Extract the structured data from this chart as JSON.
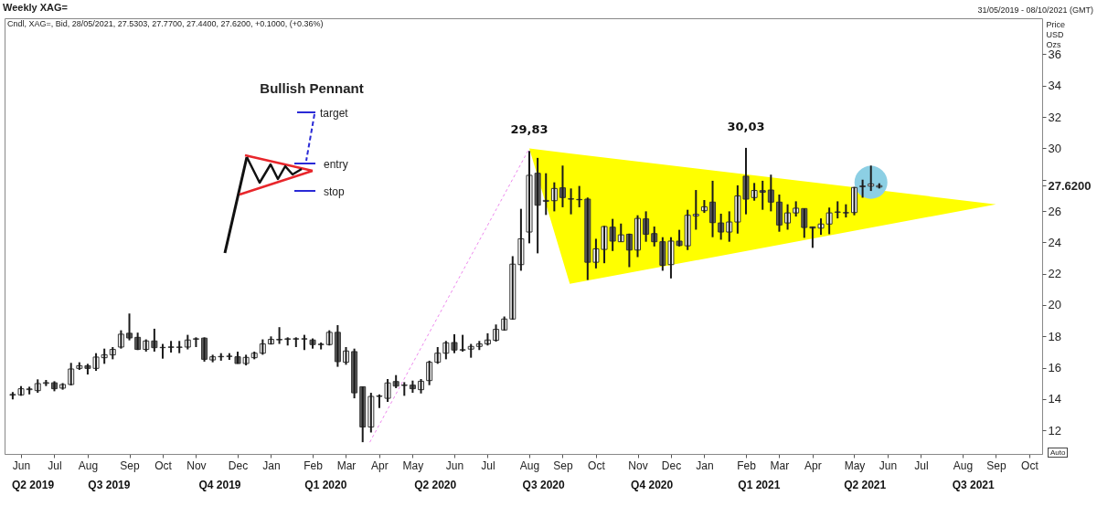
{
  "chart_data": {
    "type": "candlestick",
    "title": "Weekly XAG=",
    "subtitle": "Cndl, XAG=, Bid, 28/05/2021, 27.5303, 27.7700, 27.4400, 27.6200, +0.1000, (+0.36%)",
    "ylabel": "Price USD Ozs",
    "x": [
      "2019-05-31",
      "2019-06-07",
      "2019-06-14",
      "2019-06-21",
      "2019-06-28",
      "2019-07-05",
      "2019-07-12",
      "2019-07-19",
      "2019-07-26",
      "2019-08-02",
      "2019-08-09",
      "2019-08-16",
      "2019-08-23",
      "2019-08-30",
      "2019-09-06",
      "2019-09-13",
      "2019-09-20",
      "2019-09-27",
      "2019-10-04",
      "2019-10-11",
      "2019-10-18",
      "2019-10-25",
      "2019-11-01",
      "2019-11-08",
      "2019-11-15",
      "2019-11-22",
      "2019-11-29",
      "2019-12-06",
      "2019-12-13",
      "2019-12-20",
      "2019-12-27",
      "2020-01-03",
      "2020-01-10",
      "2020-01-17",
      "2020-01-24",
      "2020-01-31",
      "2020-02-07",
      "2020-02-14",
      "2020-02-21",
      "2020-02-28",
      "2020-03-06",
      "2020-03-13",
      "2020-03-20",
      "2020-03-27",
      "2020-04-03",
      "2020-04-10",
      "2020-04-17",
      "2020-04-24",
      "2020-05-01",
      "2020-05-08",
      "2020-05-15",
      "2020-05-22",
      "2020-05-29",
      "2020-06-05",
      "2020-06-12",
      "2020-06-19",
      "2020-06-26",
      "2020-07-03",
      "2020-07-10",
      "2020-07-17",
      "2020-07-24",
      "2020-07-31",
      "2020-08-07",
      "2020-08-14",
      "2020-08-21",
      "2020-08-28",
      "2020-09-04",
      "2020-09-11",
      "2020-09-18",
      "2020-09-25",
      "2020-10-02",
      "2020-10-09",
      "2020-10-16",
      "2020-10-23",
      "2020-10-30",
      "2020-11-06",
      "2020-11-13",
      "2020-11-20",
      "2020-11-27",
      "2020-12-04",
      "2020-12-11",
      "2020-12-18",
      "2020-12-25",
      "2021-01-01",
      "2021-01-08",
      "2021-01-15",
      "2021-01-22",
      "2021-01-29",
      "2021-02-05",
      "2021-02-12",
      "2021-02-19",
      "2021-02-26",
      "2021-03-05",
      "2021-03-12",
      "2021-03-19",
      "2021-03-26",
      "2021-04-02",
      "2021-04-09",
      "2021-04-16",
      "2021-04-23",
      "2021-04-30",
      "2021-05-07",
      "2021-05-14",
      "2021-05-21",
      "2021-05-28"
    ],
    "ohlc": [
      [
        14.25,
        14.45,
        13.98,
        14.3
      ],
      [
        14.27,
        14.83,
        14.21,
        14.66
      ],
      [
        14.6,
        14.79,
        14.3,
        14.65
      ],
      [
        14.54,
        15.26,
        14.4,
        14.99
      ],
      [
        15.0,
        15.22,
        14.83,
        15.05
      ],
      [
        15.04,
        15.14,
        14.5,
        14.66
      ],
      [
        14.7,
        15.02,
        14.6,
        14.93
      ],
      [
        14.93,
        16.31,
        14.87,
        15.92
      ],
      [
        15.96,
        16.35,
        15.86,
        16.13
      ],
      [
        16.13,
        16.25,
        15.57,
        15.96
      ],
      [
        15.96,
        16.93,
        15.8,
        16.68
      ],
      [
        16.64,
        17.22,
        16.25,
        16.83
      ],
      [
        16.82,
        17.32,
        16.54,
        17.17
      ],
      [
        17.32,
        18.39,
        17.22,
        18.14
      ],
      [
        18.2,
        19.46,
        17.75,
        17.9
      ],
      [
        17.94,
        18.24,
        17.13,
        17.17
      ],
      [
        17.17,
        17.81,
        17.03,
        17.71
      ],
      [
        17.71,
        18.49,
        17.03,
        17.28
      ],
      [
        17.3,
        17.52,
        16.58,
        17.28
      ],
      [
        17.3,
        17.71,
        16.97,
        17.33
      ],
      [
        17.32,
        17.71,
        16.93,
        17.3
      ],
      [
        17.32,
        18.1,
        17.17,
        17.77
      ],
      [
        17.82,
        17.94,
        17.32,
        17.85
      ],
      [
        17.89,
        17.94,
        16.39,
        16.54
      ],
      [
        16.5,
        16.83,
        16.35,
        16.7
      ],
      [
        16.7,
        16.93,
        16.45,
        16.72
      ],
      [
        16.72,
        16.93,
        16.5,
        16.74
      ],
      [
        16.7,
        17.03,
        16.25,
        16.27
      ],
      [
        16.27,
        16.83,
        16.15,
        16.66
      ],
      [
        16.64,
        17.03,
        16.54,
        16.93
      ],
      [
        16.93,
        17.81,
        16.83,
        17.52
      ],
      [
        17.52,
        18.0,
        17.48,
        17.81
      ],
      [
        17.78,
        18.59,
        17.52,
        17.81
      ],
      [
        17.81,
        17.94,
        17.42,
        17.85
      ],
      [
        17.85,
        17.94,
        17.32,
        17.83
      ],
      [
        17.83,
        18.1,
        17.13,
        17.85
      ],
      [
        17.77,
        17.87,
        17.22,
        17.48
      ],
      [
        17.5,
        17.61,
        17.17,
        17.48
      ],
      [
        17.48,
        18.39,
        17.42,
        18.26
      ],
      [
        18.26,
        18.72,
        16.06,
        16.39
      ],
      [
        16.35,
        17.32,
        16.19,
        17.07
      ],
      [
        17.03,
        17.22,
        14.05,
        14.4
      ],
      [
        14.79,
        14.79,
        11.25,
        12.22
      ],
      [
        12.22,
        14.4,
        11.87,
        14.17
      ],
      [
        14.17,
        14.3,
        13.43,
        14.2
      ],
      [
        14.05,
        15.28,
        13.82,
        15.03
      ],
      [
        15.12,
        15.53,
        14.7,
        14.83
      ],
      [
        14.87,
        15.08,
        14.21,
        14.9
      ],
      [
        14.89,
        15.18,
        14.4,
        14.66
      ],
      [
        14.6,
        15.28,
        14.36,
        15.14
      ],
      [
        15.18,
        16.45,
        14.89,
        16.35
      ],
      [
        16.35,
        17.32,
        16.25,
        16.93
      ],
      [
        16.93,
        17.71,
        16.54,
        17.59
      ],
      [
        17.61,
        18.14,
        16.93,
        17.13
      ],
      [
        17.13,
        18.1,
        17.03,
        17.15
      ],
      [
        17.19,
        17.52,
        16.64,
        17.36
      ],
      [
        17.36,
        17.71,
        17.13,
        17.52
      ],
      [
        17.52,
        18.2,
        17.42,
        17.77
      ],
      [
        17.75,
        18.76,
        17.67,
        18.45
      ],
      [
        18.41,
        19.27,
        18.37,
        19.11
      ],
      [
        19.11,
        23.12,
        19.07,
        22.61
      ],
      [
        22.58,
        26.14,
        22.19,
        24.23
      ],
      [
        24.66,
        29.83,
        23.94,
        28.28
      ],
      [
        28.41,
        29.39,
        23.3,
        26.37
      ],
      [
        26.62,
        28.41,
        25.75,
        26.68
      ],
      [
        26.66,
        27.83,
        25.98,
        27.44
      ],
      [
        27.48,
        28.9,
        26.24,
        26.86
      ],
      [
        26.78,
        27.44,
        25.79,
        26.76
      ],
      [
        26.74,
        27.6,
        26.24,
        26.72
      ],
      [
        26.76,
        26.86,
        21.6,
        22.73
      ],
      [
        22.73,
        24.23,
        22.34,
        23.59
      ],
      [
        23.55,
        25.05,
        22.67,
        25.01
      ],
      [
        24.97,
        25.5,
        23.45,
        24.08
      ],
      [
        24.04,
        25.2,
        24.04,
        24.48
      ],
      [
        24.52,
        24.56,
        22.42,
        23.51
      ],
      [
        23.51,
        25.73,
        23.06,
        25.53
      ],
      [
        25.5,
        25.98,
        24.04,
        24.52
      ],
      [
        24.56,
        25.01,
        23.74,
        24.04
      ],
      [
        24.04,
        24.33,
        22.19,
        22.54
      ],
      [
        22.58,
        24.33,
        21.7,
        24.08
      ],
      [
        24.08,
        24.8,
        23.74,
        23.8
      ],
      [
        23.78,
        26.08,
        23.51,
        25.73
      ],
      [
        25.69,
        27.34,
        24.81,
        25.79
      ],
      [
        26.02,
        26.7,
        25.88,
        26.27
      ],
      [
        26.57,
        27.93,
        24.33,
        25.26
      ],
      [
        25.24,
        25.83,
        24.17,
        24.66
      ],
      [
        24.66,
        25.98,
        24.04,
        25.3
      ],
      [
        25.3,
        27.64,
        24.56,
        26.96
      ],
      [
        28.22,
        30.03,
        25.79,
        26.76
      ],
      [
        26.86,
        27.79,
        26.66,
        27.31
      ],
      [
        27.3,
        27.93,
        26.08,
        27.2
      ],
      [
        27.34,
        28.32,
        25.98,
        26.57
      ],
      [
        26.57,
        27.05,
        24.68,
        25.11
      ],
      [
        25.24,
        26.43,
        24.81,
        25.88
      ],
      [
        25.88,
        26.62,
        25.65,
        26.18
      ],
      [
        26.16,
        26.16,
        24.29,
        24.95
      ],
      [
        24.99,
        24.99,
        23.65,
        24.91
      ],
      [
        24.91,
        25.53,
        24.48,
        25.17
      ],
      [
        25.17,
        26.22,
        24.52,
        25.88
      ],
      [
        25.92,
        26.62,
        25.53,
        25.94
      ],
      [
        25.88,
        26.43,
        25.59,
        25.9
      ],
      [
        25.9,
        27.54,
        25.73,
        27.5
      ],
      [
        27.55,
        28.0,
        26.85,
        27.6
      ],
      [
        27.59,
        28.9,
        27.28,
        27.73
      ],
      [
        27.53,
        27.77,
        27.44,
        27.62
      ]
    ],
    "xlim": [
      "2019-05-28",
      "2021-10-08"
    ],
    "x2lim": [
      "2019-05-28",
      "2021-10-08"
    ],
    "ylim": [
      10.5,
      38.3
    ],
    "yticks": [
      12,
      14,
      16,
      18,
      20,
      22,
      24,
      26,
      {
        "value": 27.62,
        "label": "27.6200"
      },
      {
        "value": 28,
        "label": null
      },
      30,
      32,
      34,
      36
    ],
    "xticks": [
      {
        "value": "2019-06-07",
        "label": "Jun"
      },
      {
        "value": "2019-07-05",
        "label": "Jul"
      },
      {
        "value": "2019-08-02",
        "label": "Aug"
      },
      {
        "value": "2019-09-06",
        "label": "Sep"
      },
      {
        "value": "2019-10-04",
        "label": "Oct"
      },
      {
        "value": "2019-11-01",
        "label": "Nov"
      },
      {
        "value": "2019-12-06",
        "label": "Dec"
      },
      {
        "value": "2020-01-03",
        "label": "Jan"
      },
      {
        "value": "2020-02-07",
        "label": "Feb"
      },
      {
        "value": "2020-03-06",
        "label": "Mar"
      },
      {
        "value": "2020-04-03",
        "label": "Apr"
      },
      {
        "value": "2020-05-01",
        "label": "May"
      },
      {
        "value": "2020-06-05",
        "label": "Jun"
      },
      {
        "value": "2020-07-03",
        "label": "Jul"
      },
      {
        "value": "2020-08-07",
        "label": "Aug"
      },
      {
        "value": "2020-09-04",
        "label": "Sep"
      },
      {
        "value": "2020-10-02",
        "label": "Oct"
      },
      {
        "value": "2020-11-06",
        "label": "Nov"
      },
      {
        "value": "2020-12-04",
        "label": "Dec"
      },
      {
        "value": "2021-01-01",
        "label": "Jan"
      },
      {
        "value": "2021-02-05",
        "label": "Feb"
      },
      {
        "value": "2021-03-05",
        "label": "Mar"
      },
      {
        "value": "2021-04-02",
        "label": "Apr"
      },
      {
        "value": "2021-05-07",
        "label": "May"
      },
      {
        "value": "2021-06-04",
        "label": "Jun"
      },
      {
        "value": "2021-07-02",
        "label": "Jul"
      },
      {
        "value": "2021-08-06",
        "label": "Aug"
      },
      {
        "value": "2021-09-03",
        "label": "Sep"
      },
      {
        "value": "2021-10-01",
        "label": "Oct"
      }
    ],
    "x2ticks": [
      {
        "value": "2019-06-17",
        "label": "Q2 2019"
      },
      {
        "value": "2019-08-20",
        "label": "Q3 2019"
      },
      {
        "value": "2019-11-21",
        "label": "Q4 2019"
      },
      {
        "value": "2020-02-18",
        "label": "Q1 2020"
      },
      {
        "value": "2020-05-20",
        "label": "Q2 2020"
      },
      {
        "value": "2020-08-19",
        "label": "Q3 2020"
      },
      {
        "value": "2020-11-18",
        "label": "Q4 2020"
      },
      {
        "value": "2021-02-16",
        "label": "Q1 2021"
      },
      {
        "value": "2021-05-16",
        "label": "Q2 2021"
      },
      {
        "value": "2021-08-15",
        "label": "Q3 2021"
      }
    ],
    "annotations": [
      "31/05/2019 - 08/10/2021 (GMT)",
      {
        "text": "29,83",
        "x": "2020-08-07",
        "y": 29.83
      },
      {
        "text": "30,03",
        "x": "2021-02-05",
        "y": 30.03
      },
      "Bullish Pennant",
      "target",
      "entry",
      "stop",
      "Auto"
    ]
  }
}
